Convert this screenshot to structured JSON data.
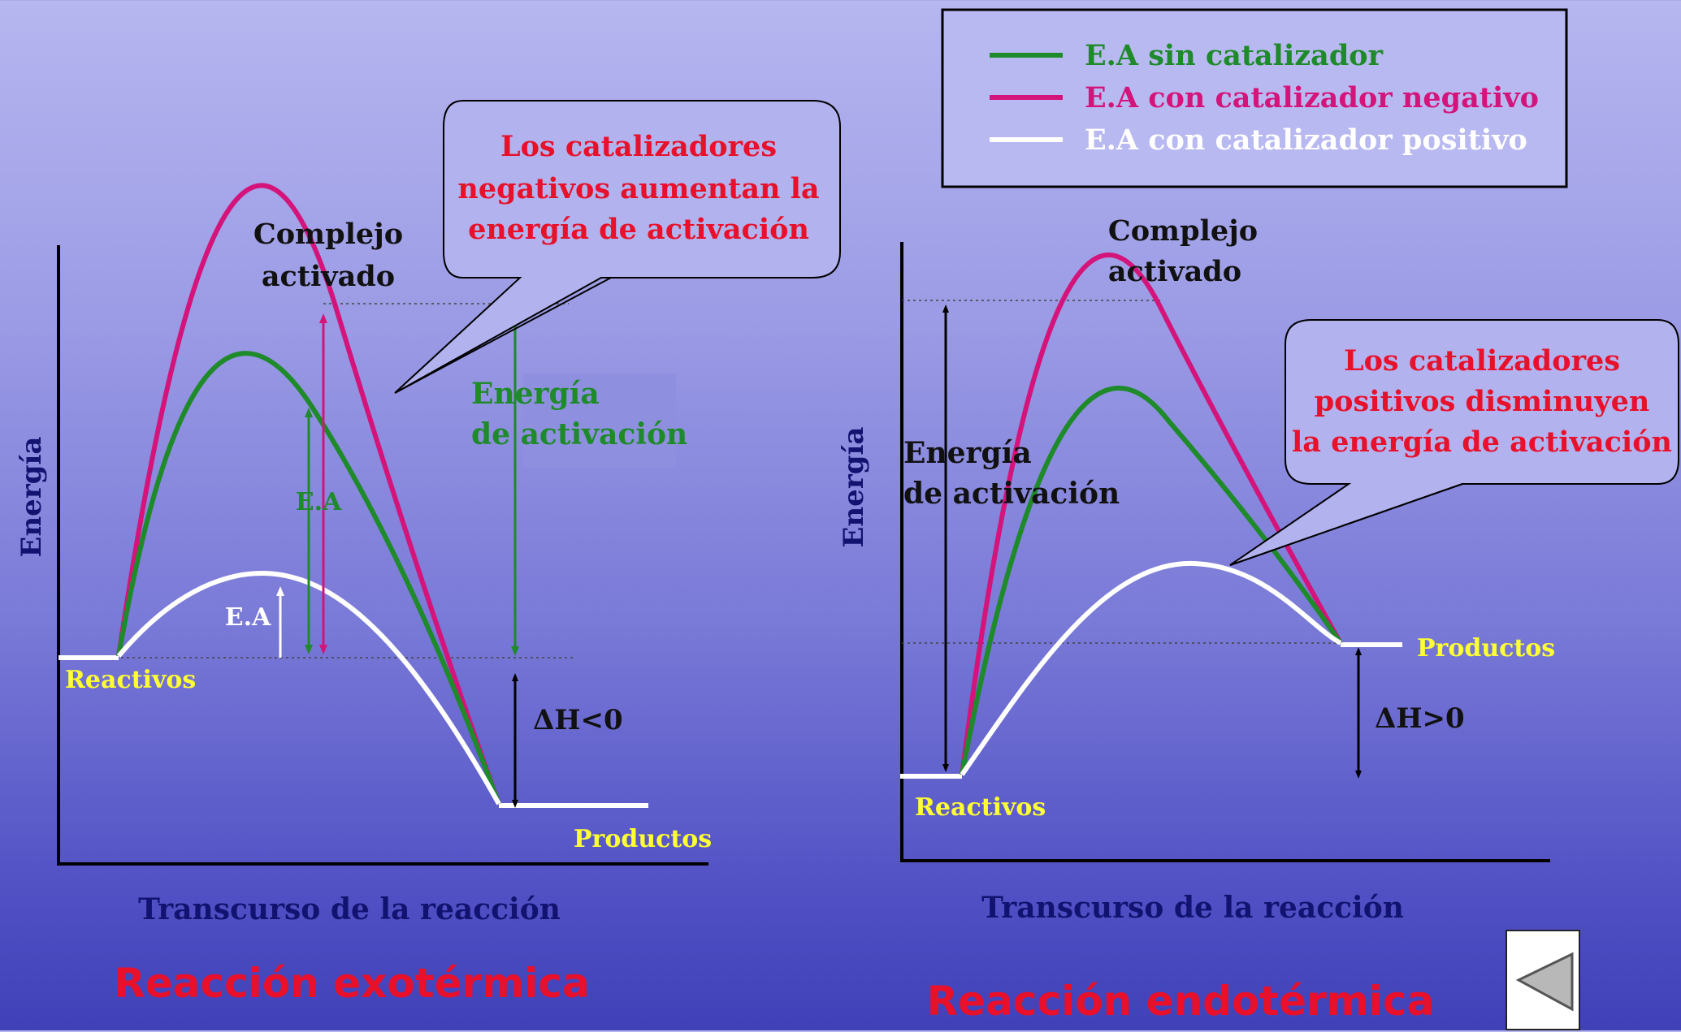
{
  "legend": {
    "items": [
      {
        "label": "E.A sin catalizador",
        "color": "#1e8a2a"
      },
      {
        "label": "E.A con catalizador negativo",
        "color": "#d4147a"
      },
      {
        "label": "E.A con catalizador positivo",
        "color": "#ffffff"
      }
    ]
  },
  "exo": {
    "y_axis_label": "Energía",
    "x_axis_label": "Transcurso de la reacción",
    "title": "Reacción  exotérmica",
    "complejo_line1": "Complejo",
    "complejo_line2": "activado",
    "callout_line1": "Los catalizadores",
    "callout_line2a": "negativos ",
    "callout_line2b": "aumentan la",
    "callout_line3": "energía de activación",
    "ea_label_line1": "Energía",
    "ea_label_line2": "de activación",
    "ea_green": "E.A",
    "ea_white": "E.A",
    "reactivos": "Reactivos",
    "productos": "Productos",
    "delta_h": "ΔH<0"
  },
  "endo": {
    "y_axis_label": "Energía",
    "x_axis_label": "Transcurso de la reacción",
    "title": "Reacción  endotérmica",
    "complejo_line1": "Complejo",
    "complejo_line2": "activado",
    "callout_line1": "Los catalizadores",
    "callout_line2": "positivos disminuyen",
    "callout_line3": "la energía de activación",
    "ea_label_line1": "Energía",
    "ea_label_line2": "de activación",
    "reactivos": "Reactivos",
    "productos": "Productos",
    "delta_h": "ΔH>0"
  },
  "colors": {
    "green": "#1e8a2a",
    "magenta": "#d4147a",
    "white": "#ffffff",
    "red_text": "#e8102a",
    "yellow_text": "#ffff33",
    "navy_text": "#121270"
  },
  "nav": {
    "back_icon": "triangle-left-icon"
  }
}
